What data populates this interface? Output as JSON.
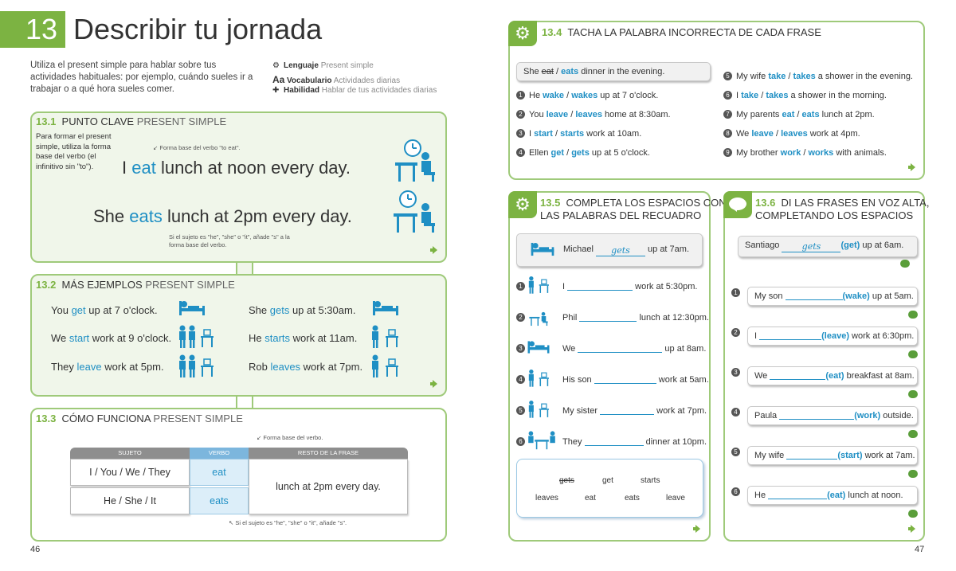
{
  "header": {
    "unit_number": "13",
    "title": "Describir tu jornada"
  },
  "intro": "Utiliza el present simple para hablar sobre tus actividades habituales: por ejemplo, cuándo sueles ir a trabajar o a qué hora sueles comer.",
  "meta": [
    {
      "label": "Lenguaje",
      "value": "Present simple"
    },
    {
      "label": "Vocabulario",
      "value": "Actividades diarias"
    },
    {
      "label": "Habilidad",
      "value": "Hablar de tus actividades diarias"
    }
  ],
  "s131": {
    "num": "13.1",
    "title": "PUNTO CLAVE",
    "sub": "PRESENT SIMPLE",
    "side": "Para formar el present simple, utiliza la forma base del verbo (el infinitivo sin \"to\").",
    "note1": "Forma base del verbo \"to eat\".",
    "ex1_a": "I ",
    "ex1_v": "eat",
    "ex1_b": " lunch at noon every day.",
    "ex2_a": "She ",
    "ex2_v": "eats",
    "ex2_b": " lunch at 2pm every day.",
    "note2": "Si el sujeto es \"he\", \"she\" o \"it\", añade \"s\" a la forma base del verbo."
  },
  "s132": {
    "num": "13.2",
    "title": "MÁS EJEMPLOS",
    "sub": "PRESENT SIMPLE",
    "items": [
      {
        "a": "You ",
        "v": "get",
        "b": " up at 7 o'clock."
      },
      {
        "a": "She ",
        "v": "gets",
        "b": " up at 5:30am."
      },
      {
        "a": "We ",
        "v": "start",
        "b": " work at 9 o'clock."
      },
      {
        "a": "He ",
        "v": "starts",
        "b": " work at 11am."
      },
      {
        "a": "They ",
        "v": "leave",
        "b": " work at 5pm."
      },
      {
        "a": "Rob ",
        "v": "leaves",
        "b": " work at 7pm."
      }
    ]
  },
  "s133": {
    "num": "13.3",
    "title": "CÓMO FUNCIONA",
    "sub": "PRESENT SIMPLE",
    "col_subject": "SUJETO",
    "col_verb": "VERBO",
    "col_rest": "RESTO DE LA FRASE",
    "note_top": "Forma base del verbo.",
    "subj1": "I / You / We / They",
    "verb1": "eat",
    "subj2": "He / She / It",
    "verb2": "eats",
    "rest": "lunch at 2pm every day.",
    "note_bottom": "Si el sujeto es \"he\", \"she\" o \"it\", añade \"s\"."
  },
  "page_left": "46",
  "page_right": "47",
  "s134": {
    "num": "13.4",
    "title": "TACHA LA PALABRA INCORRECTA DE CADA FRASE",
    "example": {
      "a": "She ",
      "struck": "eat",
      "sep": " / ",
      "v": "eats",
      "b": " dinner in the evening."
    },
    "items": [
      {
        "n": "1",
        "a": "He ",
        "o1": "wake",
        "o2": "wakes",
        "b": " up at 7 o'clock."
      },
      {
        "n": "2",
        "a": "You ",
        "o1": "leave",
        "o2": "leaves",
        "b": " home at 8:30am."
      },
      {
        "n": "3",
        "a": "I ",
        "o1": "start",
        "o2": "starts",
        "b": " work at 10am."
      },
      {
        "n": "4",
        "a": "Ellen ",
        "o1": "get",
        "o2": "gets",
        "b": " up at 5 o'clock."
      },
      {
        "n": "5",
        "a": "My wife ",
        "o1": "take",
        "o2": "takes",
        "b": " a shower in the evening."
      },
      {
        "n": "6",
        "a": "I ",
        "o1": "take",
        "o2": "takes",
        "b": " a shower in the morning."
      },
      {
        "n": "7",
        "a": "My parents ",
        "o1": "eat",
        "o2": "eats",
        "b": " lunch at 2pm."
      },
      {
        "n": "8",
        "a": "We ",
        "o1": "leave",
        "o2": "leaves",
        "b": " work at 4pm."
      },
      {
        "n": "9",
        "a": "My brother ",
        "o1": "work",
        "o2": "works",
        "b": " with animals."
      }
    ]
  },
  "s135": {
    "num": "13.5",
    "title": "COMPLETA LOS ESPACIOS CON",
    "title2": "LAS PALABRAS DEL RECUADRO",
    "example": {
      "a": "Michael ",
      "ans": "gets",
      "b": " up at 7am."
    },
    "items": [
      {
        "n": "1",
        "a": "I ",
        "b": " work at 5:30pm."
      },
      {
        "n": "2",
        "a": "Phil ",
        "b": " lunch at 12:30pm."
      },
      {
        "n": "3",
        "a": "We ",
        "b": " up at 8am."
      },
      {
        "n": "4",
        "a": "His son ",
        "b": " work at 5am."
      },
      {
        "n": "5",
        "a": "My sister ",
        "b": " work at 7pm."
      },
      {
        "n": "6",
        "a": "They ",
        "b": " dinner at 10pm."
      }
    ],
    "bank_struck": "gets",
    "bank": [
      "get",
      "starts",
      "leaves",
      "eat",
      "eats",
      "leave"
    ]
  },
  "s136": {
    "num": "13.6",
    "title": "DI LAS FRASES EN VOZ ALTA,",
    "title2": "COMPLETANDO LOS ESPACIOS",
    "example": {
      "a": "Santiago ",
      "ans": "gets",
      "v": "(get)",
      "b": " up at 6am."
    },
    "items": [
      {
        "n": "1",
        "a": "My son ",
        "v": "(wake)",
        "b": " up at 5am."
      },
      {
        "n": "2",
        "a": "I ",
        "v": "(leave)",
        "b": " work at 6:30pm."
      },
      {
        "n": "3",
        "a": "We ",
        "v": "(eat)",
        "b": " breakfast at 8am."
      },
      {
        "n": "4",
        "a": "Paula ",
        "v": "(work)",
        "b": " outside."
      },
      {
        "n": "5",
        "a": "My wife ",
        "v": "(start)",
        "b": " work at 7am."
      },
      {
        "n": "6",
        "a": "He ",
        "v": "(eat)",
        "b": " lunch at noon."
      }
    ]
  }
}
